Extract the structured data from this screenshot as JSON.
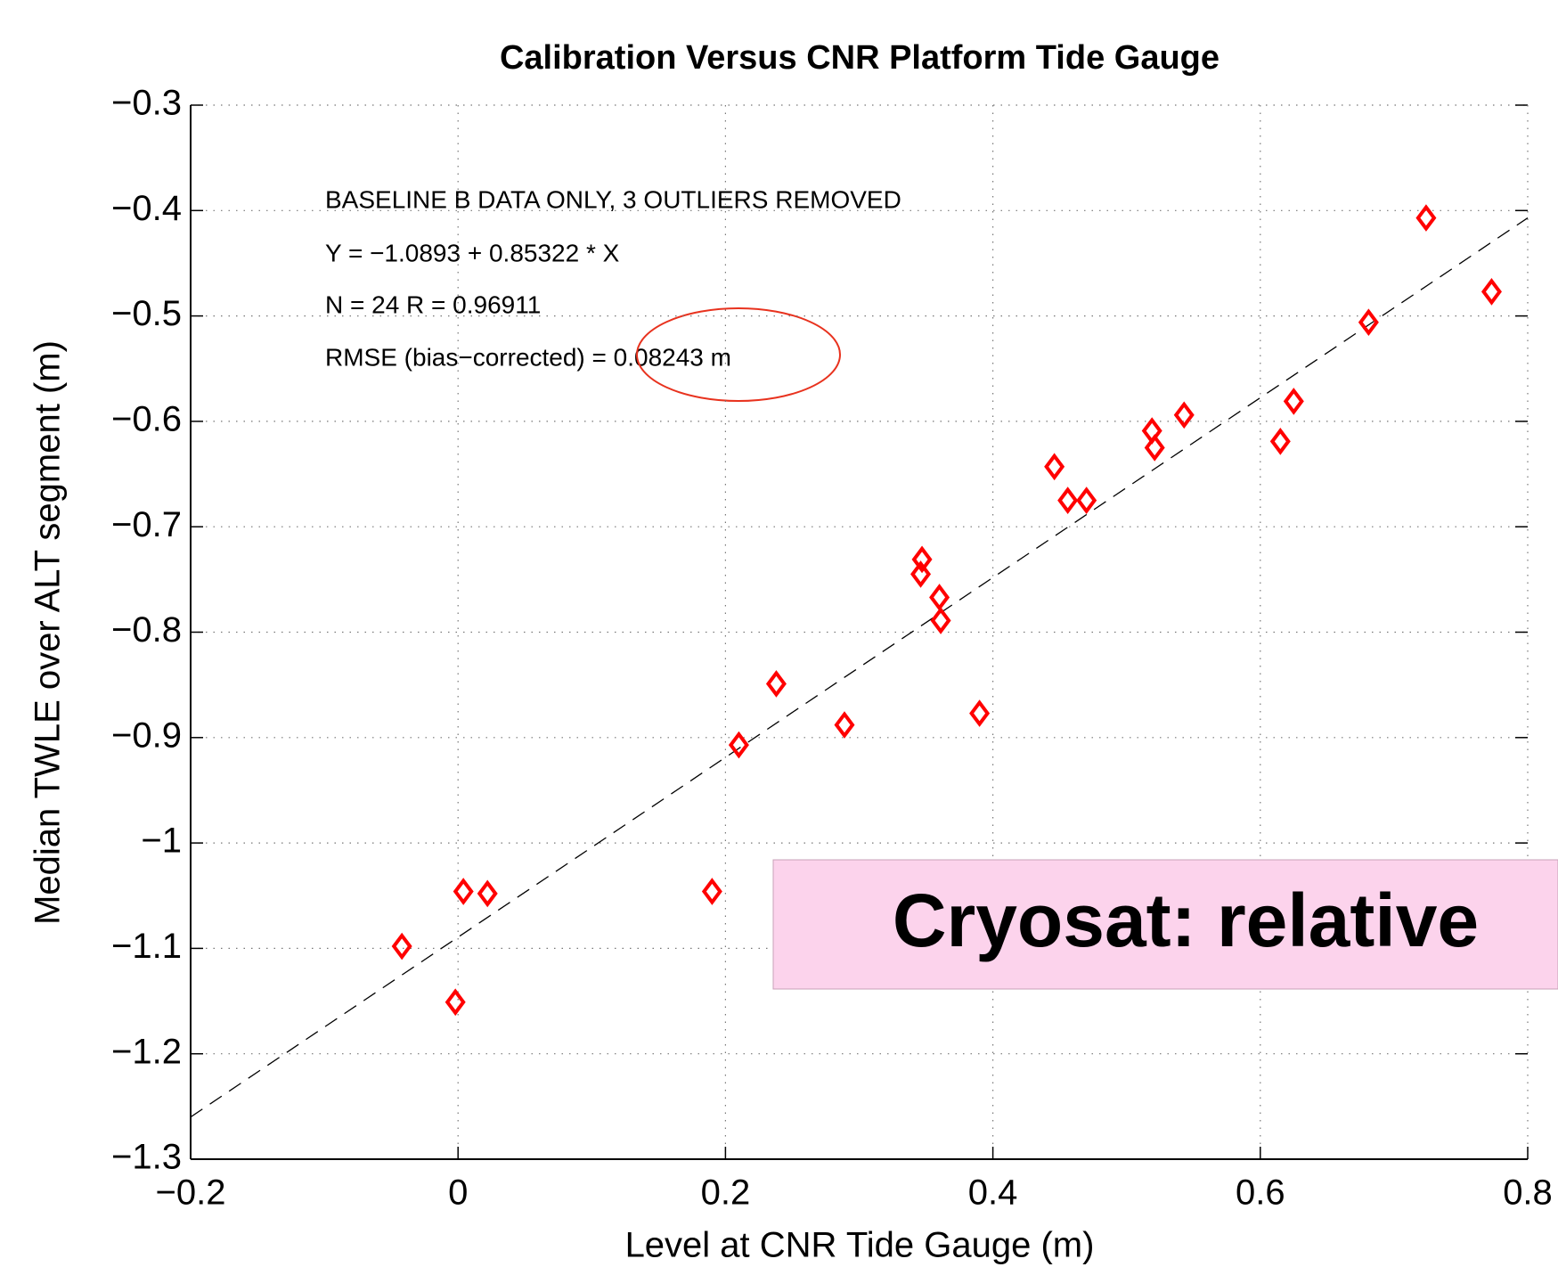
{
  "chart_data": {
    "type": "scatter",
    "title": "Calibration Versus CNR Platform Tide Gauge",
    "xlabel": "Level at CNR Tide Gauge (m)",
    "ylabel": "Median TWLE over ALT segment (m)",
    "annotations": [
      "BASELINE B DATA ONLY, 3 OUTLIERS REMOVED",
      "Y = −1.0893 + 0.85322 * X",
      "N = 24 R = 0.96911",
      "RMSE (bias−corrected) = 0.08243 m"
    ],
    "banner": "Cryosat: relative",
    "xlim": [
      -0.2,
      0.8
    ],
    "ylim": [
      -1.3,
      -0.3
    ],
    "xticks": [
      {
        "value": -0.2,
        "label": "−0.2"
      },
      0,
      0.2,
      0.4,
      0.6,
      0.8
    ],
    "yticks": [
      {
        "value": -0.3,
        "label": "−0.3"
      },
      {
        "value": -0.4,
        "label": "−0.4"
      },
      {
        "value": -0.5,
        "label": "−0.5"
      },
      {
        "value": -0.6,
        "label": "−0.6"
      },
      {
        "value": -0.7,
        "label": "−0.7"
      },
      {
        "value": -0.8,
        "label": "−0.8"
      },
      {
        "value": -0.9,
        "label": "−0.9"
      },
      {
        "value": -1,
        "label": "−1"
      },
      {
        "value": -1.1,
        "label": "−1.1"
      },
      {
        "value": -1.2,
        "label": "−1.2"
      },
      {
        "value": -1.3,
        "label": "−1.3"
      }
    ],
    "grid": true,
    "color": "#ff0000",
    "x": [
      -0.042,
      -0.002,
      0.004,
      0.022,
      0.19,
      0.21,
      0.238,
      0.289,
      0.347,
      0.346,
      0.36,
      0.361,
      0.39,
      0.446,
      0.456,
      0.47,
      0.519,
      0.521,
      0.543,
      0.615,
      0.625,
      0.681,
      0.724,
      0.773
    ],
    "values": [
      -1.098,
      -1.151,
      -1.046,
      -1.048,
      -1.046,
      -0.907,
      -0.849,
      -0.888,
      -0.731,
      -0.745,
      -0.767,
      -0.789,
      -0.877,
      -0.643,
      -0.675,
      -0.675,
      -0.609,
      -0.625,
      -0.594,
      -0.619,
      -0.581,
      -0.506,
      -0.407,
      -0.477
    ],
    "fit_line": {
      "x": [
        -0.2,
        0.8
      ],
      "values": [
        -1.26,
        -0.407
      ]
    }
  }
}
